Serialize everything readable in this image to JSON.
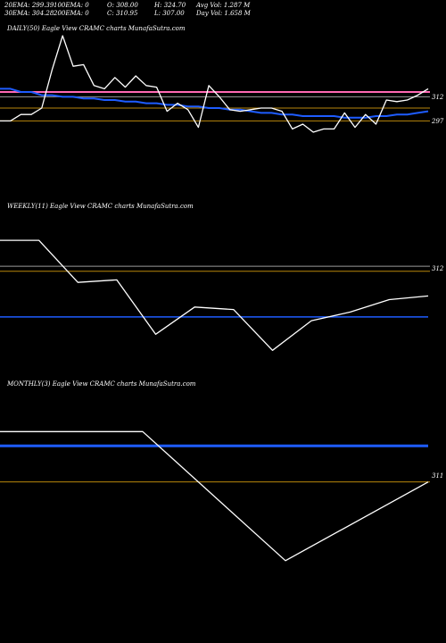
{
  "header": {
    "row1": [
      {
        "label": "20EMA: 299.39"
      },
      {
        "label": "100EMA: 0"
      },
      {
        "label": "O: 308.00"
      },
      {
        "label": "H: 324.70"
      },
      {
        "label": "Avg Vol: 1.287  M"
      }
    ],
    "row2": [
      {
        "label": "30EMA: 304.28"
      },
      {
        "label": "200EMA: 0"
      },
      {
        "label": "C: 310.95"
      },
      {
        "label": "L: 307.00"
      },
      {
        "label": "Day Vol: 1.658  M"
      }
    ]
  },
  "panels": {
    "daily": {
      "title": "DAILY(50) Eagle   View  CRAMC charts MunafaSutra.com",
      "levels": [
        "312",
        "297"
      ]
    },
    "weekly": {
      "title": "WEEKLY(11) Eagle   View  CRAMC charts MunafaSutra.com",
      "levels": [
        "312"
      ]
    },
    "monthly": {
      "title": "MONTHLY(3) Eagle   View  CRAMC charts MunafaSutra.com",
      "levels": [
        "311"
      ]
    }
  },
  "colors": {
    "background": "#000000",
    "price": "#ffffff",
    "ema_blue": "#1e5cff",
    "ema_pink": "#ff69b4",
    "level_line": "#b8860b",
    "grey_line": "#9a9a9a"
  },
  "chart_data": [
    {
      "type": "line",
      "title": "DAILY(50) Eagle   View  CRAMC charts MunafaSutra.com",
      "ylim": [
        250,
        350
      ],
      "series": [
        {
          "values": [
            297,
            297,
            301,
            301,
            305,
            329,
            350,
            331,
            332,
            319,
            317,
            324,
            318,
            325,
            319,
            318,
            303,
            308,
            304,
            293,
            319,
            312,
            304,
            303,
            304,
            305,
            305,
            303,
            292,
            295,
            290,
            292,
            292,
            302,
            293,
            301,
            295,
            310,
            309,
            310,
            313,
            317
          ]
        },
        {
          "values": [
            317,
            317,
            315,
            315,
            313,
            313,
            312,
            312,
            311,
            311,
            310,
            310,
            309,
            309,
            308,
            308,
            307,
            307,
            306,
            306,
            305,
            305,
            304,
            304,
            303,
            302,
            302,
            301,
            301,
            300,
            300,
            300,
            300,
            299,
            299,
            299,
            300,
            300,
            301,
            301,
            302,
            303
          ]
        },
        {
          "values": [
            315,
            315,
            315,
            315,
            315,
            315,
            315,
            315,
            315,
            315,
            315,
            315,
            315,
            315,
            315,
            315,
            315,
            315,
            315,
            315,
            315,
            315,
            315,
            315,
            315,
            315,
            315,
            315,
            315,
            315,
            315,
            315,
            315,
            315,
            315,
            315,
            315,
            315,
            315,
            315,
            315,
            315
          ]
        }
      ]
    },
    {
      "type": "line",
      "title": "WEEKLY(11) Eagle   View  CRAMC charts MunafaSutra.com",
      "ylim": [
        250,
        380
      ],
      "series": [
        {
          "values": [
            359,
            359,
            325,
            327,
            283,
            305,
            303,
            270,
            294,
            301,
            311,
            314
          ]
        },
        {
          "values": [
            297,
            297,
            297,
            297,
            297,
            297,
            297,
            297,
            297,
            297,
            297,
            297
          ]
        }
      ]
    },
    {
      "type": "line",
      "title": "MONTHLY(3) Eagle   View  CRAMC charts MunafaSutra.com",
      "ylim": [
        200,
        380
      ],
      "series": [
        {
          "values": [
            350,
            350,
            250,
            311
          ]
        },
        {
          "values": [
            339,
            339,
            339,
            339
          ]
        }
      ]
    }
  ]
}
